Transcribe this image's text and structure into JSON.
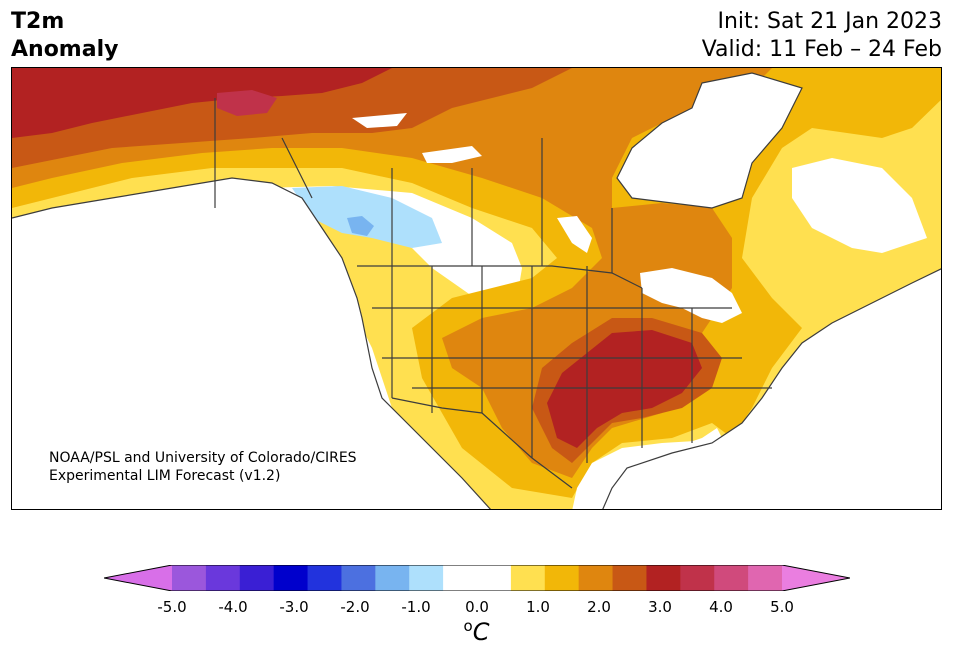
{
  "title": {
    "line1": "T2m",
    "line2": "Anomaly"
  },
  "init": "Init: Sat 21 Jan 2023",
  "valid": "Valid: 11 Feb – 24 Feb",
  "credit": {
    "line1": "NOAA/PSL and University of Colorado/CIRES",
    "line2": "Experimental LIM Forecast (v1.2)"
  },
  "colorbar": {
    "colors": [
      "#d86fe8",
      "#9b57dc",
      "#6a38dc",
      "#3a1fd4",
      "#0000cc",
      "#2233dd",
      "#4c70e0",
      "#78b4f0",
      "#aee0fc",
      "#ffffff",
      "#ffffff",
      "#ffe050",
      "#f2b708",
      "#df860f",
      "#c85815",
      "#b22222",
      "#c0324a",
      "#d04a7c",
      "#e066b0",
      "#ea7ee0"
    ],
    "ticks": [
      "-5.0",
      "-4.0",
      "-3.0",
      "-2.0",
      "-1.0",
      "0.0",
      "1.0",
      "2.0",
      "3.0",
      "4.0",
      "5.0"
    ],
    "unit_super": "o",
    "unit": "C"
  },
  "map_colors": {
    "pos1": "#ffe050",
    "pos2": "#f2b708",
    "pos3": "#df860f",
    "pos4": "#c85815",
    "pos5": "#b22222",
    "pos6": "#c0324a",
    "neg1": "#aee0fc",
    "neg2": "#78b4f0",
    "lines": "#3c3c3c"
  }
}
